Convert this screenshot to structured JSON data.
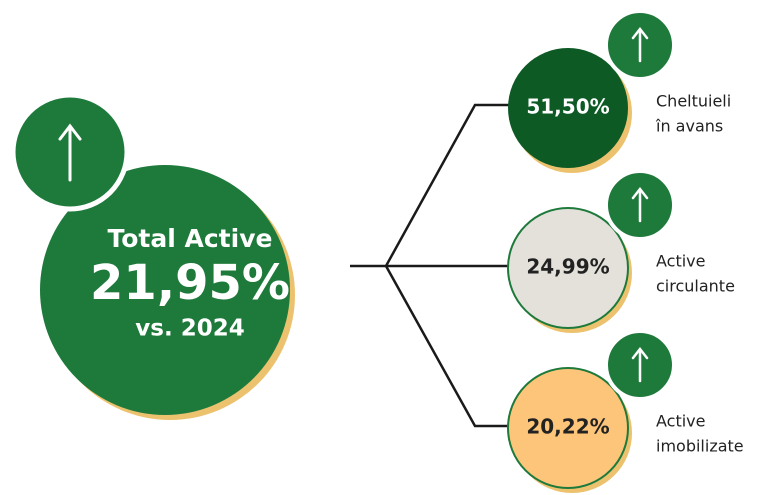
{
  "main": {
    "title": "Total Active",
    "value": "21,95%",
    "subtitle": "vs. 2024"
  },
  "items": [
    {
      "value": "51,50%",
      "label": [
        "Cheltuieli",
        "în avans"
      ]
    },
    {
      "value": "24,99%",
      "label": [
        "Active",
        "circulante"
      ]
    },
    {
      "value": "20,22%",
      "label": [
        "Active",
        "imobilizate"
      ]
    }
  ]
}
